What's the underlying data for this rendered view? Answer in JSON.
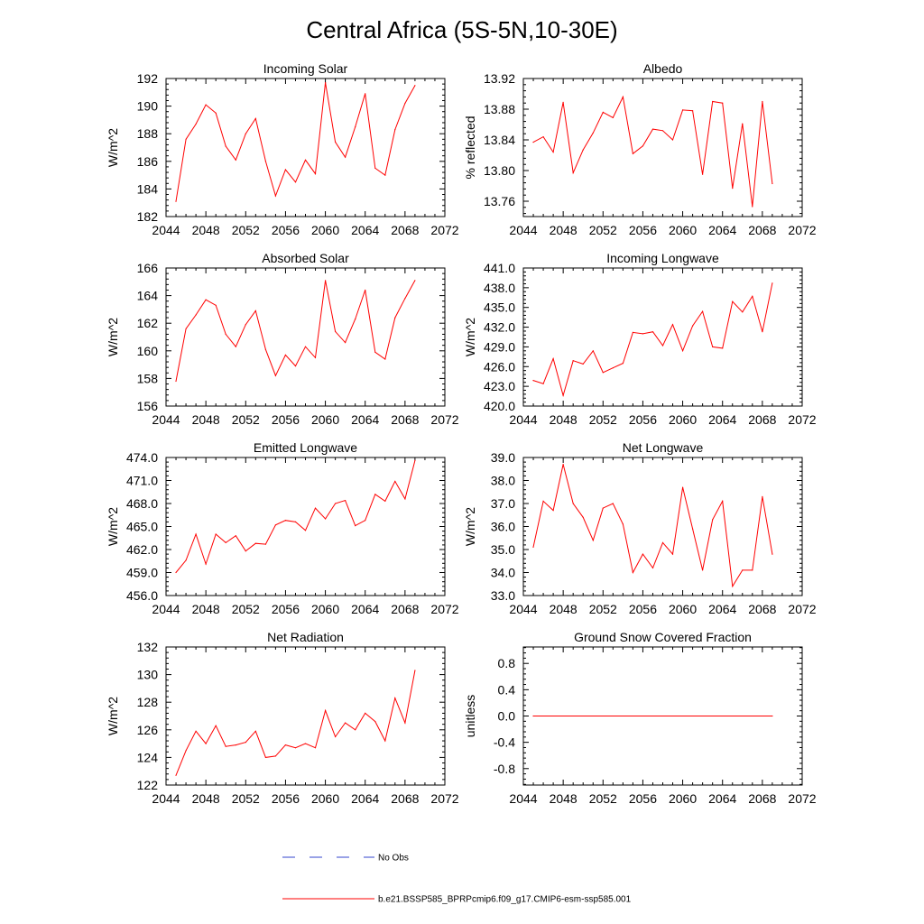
{
  "figure": {
    "title": "Central Africa (5S-5N,10-30E)",
    "line_color": "#ff0000",
    "obs_color": "#3344cc"
  },
  "legend": {
    "obs_label": "No Obs",
    "model_label": "b.e21.BSSP585_BPRPcmip6.f09_g17.CMIP6-esm-ssp585.001"
  },
  "chart_data": [
    {
      "type": "line",
      "title": "Incoming Solar",
      "ylabel": "W/m^2",
      "xlim": [
        2044,
        2072
      ],
      "xticks": [
        "2044",
        "2048",
        "2052",
        "2056",
        "2060",
        "2064",
        "2068",
        "2072"
      ],
      "ylim": [
        182,
        192
      ],
      "yticks": [
        "182",
        "184",
        "186",
        "188",
        "190",
        "192"
      ],
      "series": [
        {
          "x": [
            2045,
            2046,
            2047,
            2048,
            2049,
            2050,
            2051,
            2052,
            2053,
            2054,
            2055,
            2056,
            2057,
            2058,
            2059,
            2060,
            2061,
            2062,
            2063,
            2064,
            2065,
            2066,
            2067,
            2068,
            2069
          ],
          "values": [
            183.1,
            187.6,
            188.7,
            190.1,
            189.5,
            187.1,
            186.1,
            188.0,
            189.1,
            186.0,
            183.5,
            185.4,
            184.5,
            186.1,
            185.1,
            191.7,
            187.4,
            186.3,
            188.5,
            190.9,
            185.5,
            185.0,
            188.3,
            190.2,
            191.5
          ]
        }
      ]
    },
    {
      "type": "line",
      "title": "Albedo",
      "ylabel": "% reflected",
      "xlim": [
        2044,
        2072
      ],
      "xticks": [
        "2044",
        "2048",
        "2052",
        "2056",
        "2060",
        "2064",
        "2068",
        "2072"
      ],
      "ylim": [
        13.74,
        13.92
      ],
      "yticks": [
        "13.76",
        "13.80",
        "13.84",
        "13.88",
        "13.92"
      ],
      "series": [
        {
          "x": [
            2045,
            2046,
            2047,
            2048,
            2049,
            2050,
            2051,
            2052,
            2053,
            2054,
            2055,
            2056,
            2057,
            2058,
            2059,
            2060,
            2061,
            2062,
            2063,
            2064,
            2065,
            2066,
            2067,
            2068,
            2069
          ],
          "values": [
            13.837,
            13.844,
            13.824,
            13.889,
            13.797,
            13.827,
            13.849,
            13.876,
            13.869,
            13.896,
            13.822,
            13.832,
            13.854,
            13.852,
            13.84,
            13.879,
            13.878,
            13.795,
            13.89,
            13.888,
            13.777,
            13.861,
            13.753,
            13.89,
            13.783
          ]
        }
      ]
    },
    {
      "type": "line",
      "title": "Absorbed Solar",
      "ylabel": "W/m^2",
      "xlim": [
        2044,
        2072
      ],
      "xticks": [
        "2044",
        "2048",
        "2052",
        "2056",
        "2060",
        "2064",
        "2068",
        "2072"
      ],
      "ylim": [
        156,
        166
      ],
      "yticks": [
        "156",
        "158",
        "160",
        "162",
        "164",
        "166"
      ],
      "series": [
        {
          "x": [
            2045,
            2046,
            2047,
            2048,
            2049,
            2050,
            2051,
            2052,
            2053,
            2054,
            2055,
            2056,
            2057,
            2058,
            2059,
            2060,
            2061,
            2062,
            2063,
            2064,
            2065,
            2066,
            2067,
            2068,
            2069
          ],
          "values": [
            157.8,
            161.6,
            162.6,
            163.7,
            163.3,
            161.2,
            160.3,
            161.9,
            162.9,
            160.1,
            158.2,
            159.7,
            158.9,
            160.3,
            159.5,
            165.1,
            161.4,
            160.6,
            162.3,
            164.4,
            159.9,
            159.4,
            162.4,
            163.8,
            165.1
          ]
        }
      ]
    },
    {
      "type": "line",
      "title": "Incoming Longwave",
      "ylabel": "W/m^2",
      "xlim": [
        2044,
        2072
      ],
      "xticks": [
        "2044",
        "2048",
        "2052",
        "2056",
        "2060",
        "2064",
        "2068",
        "2072"
      ],
      "ylim": [
        420,
        441
      ],
      "yticks": [
        "420.0",
        "423.0",
        "426.0",
        "429.0",
        "432.0",
        "435.0",
        "438.0",
        "441.0"
      ],
      "series": [
        {
          "x": [
            2045,
            2046,
            2047,
            2048,
            2049,
            2050,
            2051,
            2052,
            2053,
            2054,
            2055,
            2056,
            2057,
            2058,
            2059,
            2060,
            2061,
            2062,
            2063,
            2064,
            2065,
            2066,
            2067,
            2068,
            2069
          ],
          "values": [
            423.9,
            423.4,
            427.2,
            421.6,
            426.9,
            426.4,
            428.4,
            425.1,
            425.8,
            426.5,
            431.2,
            431.0,
            431.3,
            429.2,
            432.4,
            428.4,
            432.2,
            434.4,
            429.0,
            428.8,
            435.9,
            434.3,
            436.7,
            431.3,
            438.7
          ]
        }
      ]
    },
    {
      "type": "line",
      "title": "Emitted Longwave",
      "ylabel": "W/m^2",
      "xlim": [
        2044,
        2072
      ],
      "xticks": [
        "2044",
        "2048",
        "2052",
        "2056",
        "2060",
        "2064",
        "2068",
        "2072"
      ],
      "ylim": [
        456,
        474
      ],
      "yticks": [
        "456.0",
        "459.0",
        "462.0",
        "465.0",
        "468.0",
        "471.0",
        "474.0"
      ],
      "series": [
        {
          "x": [
            2045,
            2046,
            2047,
            2048,
            2049,
            2050,
            2051,
            2052,
            2053,
            2054,
            2055,
            2056,
            2057,
            2058,
            2059,
            2060,
            2061,
            2062,
            2063,
            2064,
            2065,
            2066,
            2067,
            2068,
            2069
          ],
          "values": [
            459.0,
            460.6,
            464.0,
            460.1,
            464.0,
            462.9,
            463.8,
            461.8,
            462.8,
            462.7,
            465.2,
            465.8,
            465.6,
            464.5,
            467.4,
            466.0,
            468.0,
            468.4,
            465.1,
            465.8,
            469.2,
            468.3,
            470.9,
            468.6,
            473.6
          ]
        }
      ]
    },
    {
      "type": "line",
      "title": "Net Longwave",
      "ylabel": "W/m^2",
      "xlim": [
        2044,
        2072
      ],
      "xticks": [
        "2044",
        "2048",
        "2052",
        "2056",
        "2060",
        "2064",
        "2068",
        "2072"
      ],
      "ylim": [
        33,
        39
      ],
      "yticks": [
        "33.0",
        "34.0",
        "35.0",
        "36.0",
        "37.0",
        "38.0",
        "39.0"
      ],
      "series": [
        {
          "x": [
            2045,
            2046,
            2047,
            2048,
            2049,
            2050,
            2051,
            2052,
            2053,
            2054,
            2055,
            2056,
            2057,
            2058,
            2059,
            2060,
            2061,
            2062,
            2063,
            2064,
            2065,
            2066,
            2067,
            2068,
            2069
          ],
          "values": [
            35.1,
            37.1,
            36.7,
            38.7,
            37.0,
            36.4,
            35.4,
            36.8,
            37.0,
            36.1,
            34.0,
            34.8,
            34.2,
            35.3,
            34.8,
            37.7,
            35.9,
            34.1,
            36.3,
            37.1,
            33.4,
            34.1,
            34.1,
            37.3,
            34.8
          ]
        }
      ]
    },
    {
      "type": "line",
      "title": "Net Radiation",
      "ylabel": "W/m^2",
      "xlim": [
        2044,
        2072
      ],
      "xticks": [
        "2044",
        "2048",
        "2052",
        "2056",
        "2060",
        "2064",
        "2068",
        "2072"
      ],
      "ylim": [
        122,
        132
      ],
      "yticks": [
        "122",
        "124",
        "126",
        "128",
        "130",
        "132"
      ],
      "series": [
        {
          "x": [
            2045,
            2046,
            2047,
            2048,
            2049,
            2050,
            2051,
            2052,
            2053,
            2054,
            2055,
            2056,
            2057,
            2058,
            2059,
            2060,
            2061,
            2062,
            2063,
            2064,
            2065,
            2066,
            2067,
            2068,
            2069
          ],
          "values": [
            122.7,
            124.5,
            125.9,
            125.0,
            126.3,
            124.8,
            124.9,
            125.1,
            125.9,
            124.0,
            124.1,
            124.9,
            124.7,
            125.0,
            124.7,
            127.4,
            125.5,
            126.5,
            126.0,
            127.2,
            126.6,
            125.2,
            128.3,
            126.5,
            130.3
          ]
        }
      ]
    },
    {
      "type": "line",
      "title": "Ground Snow Covered Fraction",
      "ylabel": "unitless",
      "xlim": [
        2044,
        2072
      ],
      "xticks": [
        "2044",
        "2048",
        "2052",
        "2056",
        "2060",
        "2064",
        "2068",
        "2072"
      ],
      "ylim": [
        -1.05,
        1.05
      ],
      "yticks": [
        "-0.8",
        "-0.4",
        "0.0",
        "0.4",
        "0.8"
      ],
      "series": [
        {
          "x": [
            2045,
            2069
          ],
          "values": [
            0.0,
            0.0
          ]
        }
      ]
    }
  ]
}
